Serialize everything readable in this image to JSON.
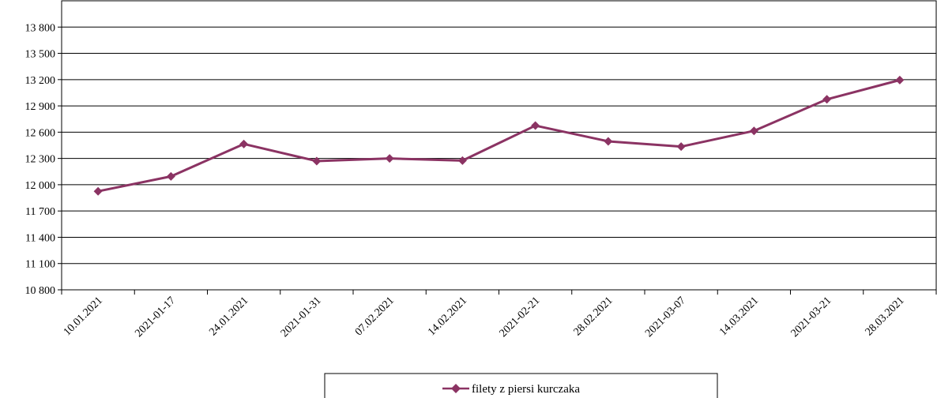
{
  "chart_data": {
    "type": "line",
    "categories": [
      "10.01.2021",
      "2021-01-17",
      "24.01.2021",
      "2021-01-31",
      "07.02.2021",
      "14.02.2021",
      "2021-02-21",
      "28.02.2021",
      "2021-03-07",
      "14.03.2021",
      "2021-03-21",
      "28.03.2021"
    ],
    "series": [
      {
        "name": "filety z piersi kurczaka",
        "values": [
          11925,
          12095,
          12465,
          12270,
          12300,
          12275,
          12675,
          12495,
          12435,
          12615,
          12975,
          13195
        ],
        "color": "#8b3363",
        "marker": "diamond"
      }
    ],
    "y_ticks": [
      "10 800",
      "11 100",
      "11 400",
      "11 700",
      "12 000",
      "12 300",
      "12 600",
      "12 900",
      "13 200",
      "13 500",
      "13 800"
    ],
    "ylim": [
      10800,
      14100
    ],
    "grid": true,
    "legend": "bottom-center"
  }
}
